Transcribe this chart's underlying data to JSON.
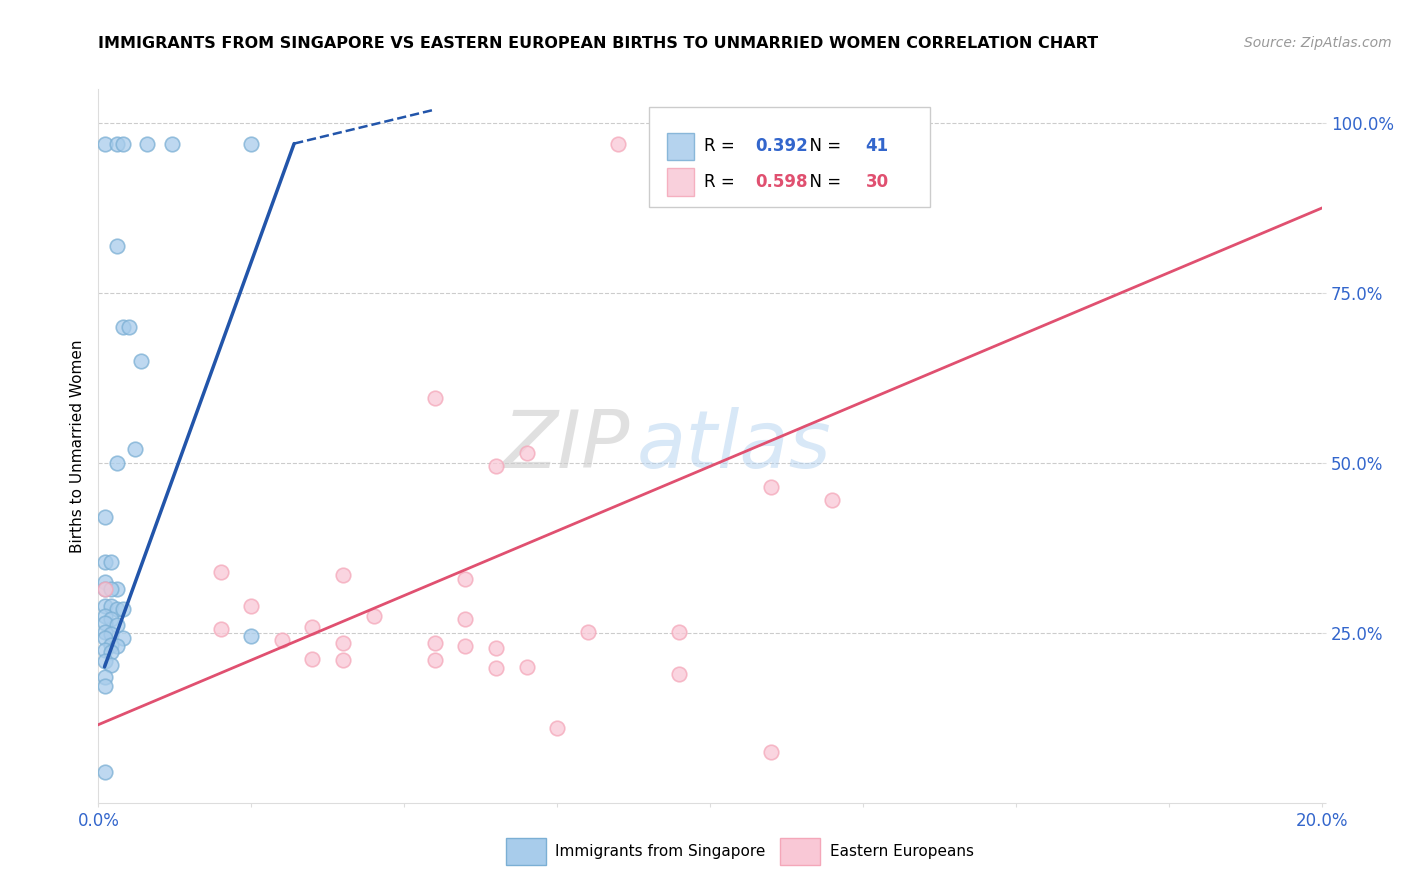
{
  "title": "IMMIGRANTS FROM SINGAPORE VS EASTERN EUROPEAN BIRTHS TO UNMARRIED WOMEN CORRELATION CHART",
  "source": "Source: ZipAtlas.com",
  "ylabel": "Births to Unmarried Women",
  "xlim": [
    0.0,
    0.2
  ],
  "ylim": [
    0.0,
    1.05
  ],
  "xticks": [
    0.0,
    0.025,
    0.05,
    0.075,
    0.1,
    0.125,
    0.15,
    0.175,
    0.2
  ],
  "xtick_labels_show": [
    "0.0%",
    "",
    "",
    "",
    "",
    "",
    "",
    "",
    "20.0%"
  ],
  "yticks": [
    0.0,
    0.25,
    0.5,
    0.75,
    1.0
  ],
  "ytick_labels": [
    "",
    "25.0%",
    "50.0%",
    "75.0%",
    "100.0%"
  ],
  "blue_R": "0.392",
  "blue_N": "41",
  "pink_R": "0.598",
  "pink_N": "30",
  "blue_color": "#7BAFD4",
  "pink_color": "#F4A7B9",
  "blue_fill": "#A8CCEB",
  "pink_fill": "#F9C8D6",
  "blue_line_color": "#2255AA",
  "pink_line_color": "#E05070",
  "watermark_zip": "ZIP",
  "watermark_atlas": "atlas",
  "blue_scatter": [
    [
      0.001,
      0.97
    ],
    [
      0.003,
      0.97
    ],
    [
      0.004,
      0.97
    ],
    [
      0.008,
      0.97
    ],
    [
      0.012,
      0.97
    ],
    [
      0.025,
      0.97
    ],
    [
      0.003,
      0.82
    ],
    [
      0.004,
      0.7
    ],
    [
      0.005,
      0.7
    ],
    [
      0.007,
      0.65
    ],
    [
      0.006,
      0.52
    ],
    [
      0.003,
      0.5
    ],
    [
      0.001,
      0.42
    ],
    [
      0.001,
      0.355
    ],
    [
      0.002,
      0.355
    ],
    [
      0.001,
      0.325
    ],
    [
      0.001,
      0.315
    ],
    [
      0.003,
      0.315
    ],
    [
      0.002,
      0.315
    ],
    [
      0.001,
      0.29
    ],
    [
      0.002,
      0.29
    ],
    [
      0.003,
      0.285
    ],
    [
      0.004,
      0.285
    ],
    [
      0.001,
      0.275
    ],
    [
      0.002,
      0.27
    ],
    [
      0.001,
      0.265
    ],
    [
      0.003,
      0.262
    ],
    [
      0.001,
      0.252
    ],
    [
      0.002,
      0.248
    ],
    [
      0.001,
      0.243
    ],
    [
      0.004,
      0.243
    ],
    [
      0.002,
      0.232
    ],
    [
      0.003,
      0.23
    ],
    [
      0.001,
      0.225
    ],
    [
      0.002,
      0.222
    ],
    [
      0.001,
      0.208
    ],
    [
      0.002,
      0.203
    ],
    [
      0.001,
      0.185
    ],
    [
      0.001,
      0.172
    ],
    [
      0.025,
      0.245
    ],
    [
      0.001,
      0.045
    ]
  ],
  "pink_scatter": [
    [
      0.085,
      0.97
    ],
    [
      0.055,
      0.595
    ],
    [
      0.07,
      0.515
    ],
    [
      0.065,
      0.495
    ],
    [
      0.11,
      0.465
    ],
    [
      0.12,
      0.445
    ],
    [
      0.02,
      0.34
    ],
    [
      0.04,
      0.335
    ],
    [
      0.06,
      0.33
    ],
    [
      0.025,
      0.29
    ],
    [
      0.045,
      0.275
    ],
    [
      0.06,
      0.27
    ],
    [
      0.02,
      0.255
    ],
    [
      0.035,
      0.258
    ],
    [
      0.08,
      0.252
    ],
    [
      0.095,
      0.252
    ],
    [
      0.03,
      0.24
    ],
    [
      0.04,
      0.235
    ],
    [
      0.055,
      0.235
    ],
    [
      0.06,
      0.23
    ],
    [
      0.065,
      0.228
    ],
    [
      0.035,
      0.212
    ],
    [
      0.04,
      0.21
    ],
    [
      0.055,
      0.21
    ],
    [
      0.07,
      0.2
    ],
    [
      0.065,
      0.198
    ],
    [
      0.095,
      0.19
    ],
    [
      0.075,
      0.11
    ],
    [
      0.11,
      0.075
    ],
    [
      0.001,
      0.315
    ]
  ],
  "blue_line_solid": [
    [
      0.001,
      0.2
    ],
    [
      0.032,
      0.97
    ]
  ],
  "blue_line_dashed": [
    [
      0.032,
      0.97
    ],
    [
      0.055,
      1.02
    ]
  ],
  "pink_line": [
    [
      0.0,
      0.115
    ],
    [
      0.2,
      0.875
    ]
  ]
}
